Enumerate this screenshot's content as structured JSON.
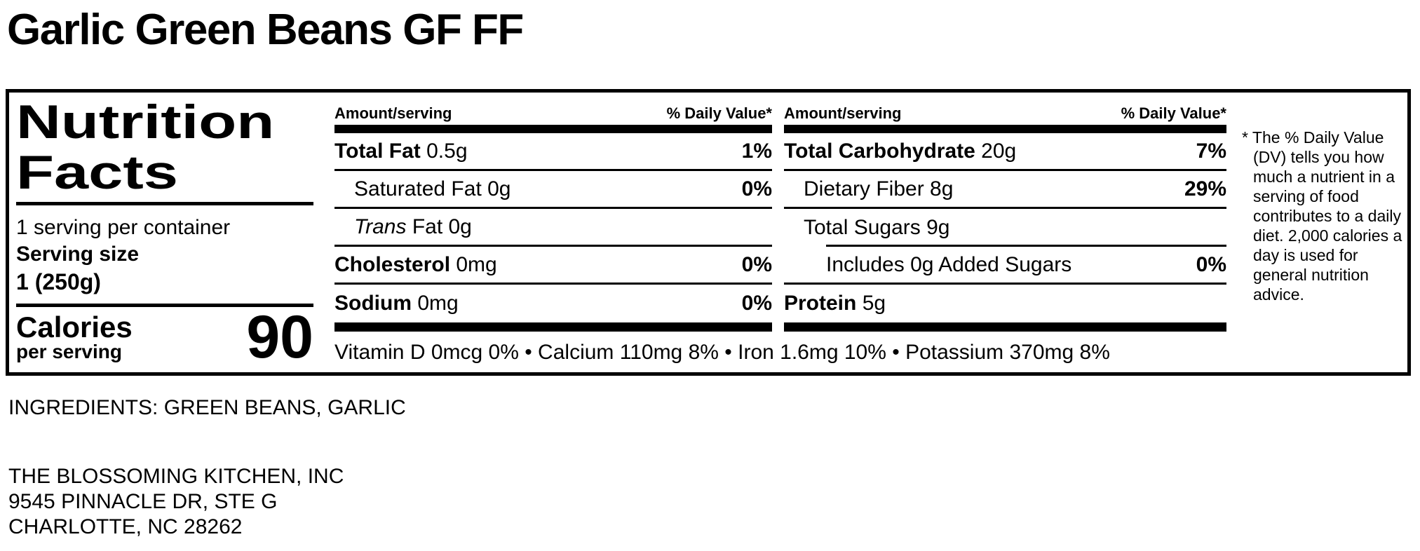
{
  "title": "Garlic Green Beans GF FF",
  "label": {
    "panel": {
      "title_line1": "Nutrition",
      "title_line2": "Facts",
      "servings_per_container": "1 serving per container",
      "serving_size_label": "Serving size",
      "serving_size_value": "1 (250g)",
      "calories_label": "Calories",
      "calories_sub": "per serving",
      "calories_value": "90"
    },
    "mid": {
      "header_amount": "Amount/serving",
      "header_dv": "% Daily Value*",
      "rows": [
        {
          "b": "Total Fat",
          "r": "0.5g",
          "pct": "1%"
        },
        {
          "r": "Saturated Fat 0g",
          "pct": "0%"
        },
        {
          "i": "Trans",
          "r": "Fat 0g",
          "pct": ""
        },
        {
          "b": "Cholesterol",
          "r": "0mg",
          "pct": "0%"
        },
        {
          "b": "Sodium",
          "r": "0mg",
          "pct": "0%"
        }
      ]
    },
    "right": {
      "header_amount": "Amount/serving",
      "header_dv": "% Daily Value*",
      "rows": [
        {
          "b": "Total Carbohydrate",
          "r": "20g",
          "pct": "7%"
        },
        {
          "r": "Dietary Fiber 8g",
          "pct": "29%"
        },
        {
          "r": "Total Sugars 9g",
          "pct": ""
        },
        {
          "r": "Includes 0g Added Sugars",
          "pct": "0%"
        },
        {
          "b": "Protein",
          "r": "5g",
          "pct": ""
        }
      ]
    },
    "micronutrients": "Vitamin D 0mcg 0% • Calcium 110mg 8% • Iron 1.6mg 10% • Potassium 370mg 8%",
    "footnote": "* The % Daily Value (DV) tells you how much a nutrient in a serving of food contributes to a daily diet. 2,000 calories a day is used for general nutrition advice."
  },
  "ingredients": "INGREDIENTS: GREEN BEANS, GARLIC",
  "manufacturer": {
    "name": "THE BLOSSOMING KITCHEN, INC",
    "address1": "9545 PINNACLE DR, STE G",
    "address2": "CHARLOTTE, NC 28262"
  },
  "colors": {
    "text": "#000000",
    "background": "#ffffff"
  }
}
